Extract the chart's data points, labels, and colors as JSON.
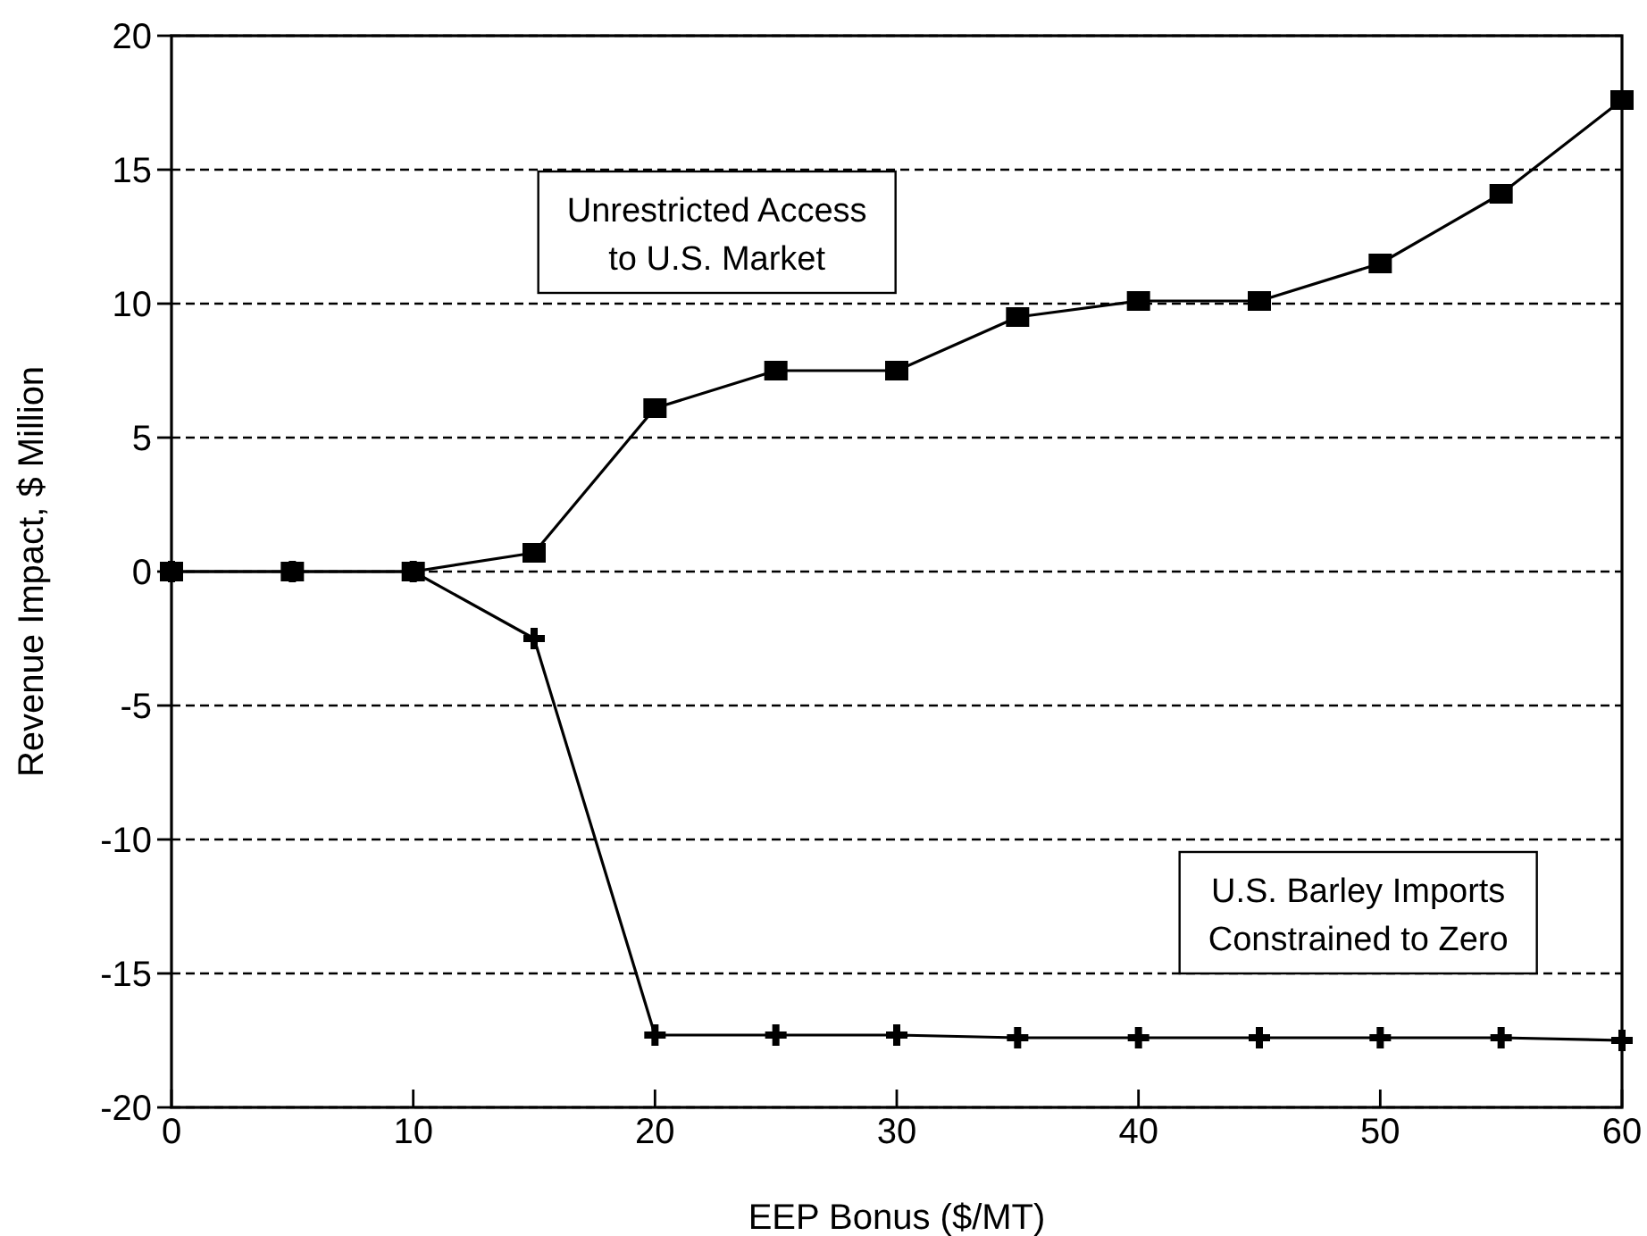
{
  "chart_data": {
    "type": "line",
    "xlabel": "EEP Bonus ($/MT)",
    "ylabel": "Revenue Impact, $ Million",
    "x": [
      0,
      5,
      10,
      15,
      20,
      25,
      30,
      35,
      40,
      45,
      50,
      55,
      60
    ],
    "series": [
      {
        "name": "Unrestricted Access\nto U.S. Market",
        "color": "#000000",
        "marker": "square",
        "values": [
          0,
          0,
          0,
          0.7,
          6.1,
          7.5,
          7.5,
          9.5,
          10.1,
          10.1,
          11.5,
          14.1,
          17.6
        ]
      },
      {
        "name": "U.S. Barley Imports\nConstrained to Zero",
        "color": "#000000",
        "marker": "cross",
        "values": [
          0,
          0,
          0,
          -2.5,
          -17.3,
          -17.3,
          -17.3,
          -17.4,
          -17.4,
          -17.4,
          -17.4,
          -17.4,
          -17.5
        ]
      }
    ],
    "xlim": [
      0,
      60
    ],
    "xticks": [
      0,
      10,
      20,
      30,
      40,
      50,
      60
    ],
    "ylim": [
      -20,
      20
    ],
    "yticks": [
      -20,
      -15,
      -10,
      -5,
      0,
      5,
      10,
      15,
      20
    ],
    "grid": "y",
    "line_style": "solid"
  }
}
